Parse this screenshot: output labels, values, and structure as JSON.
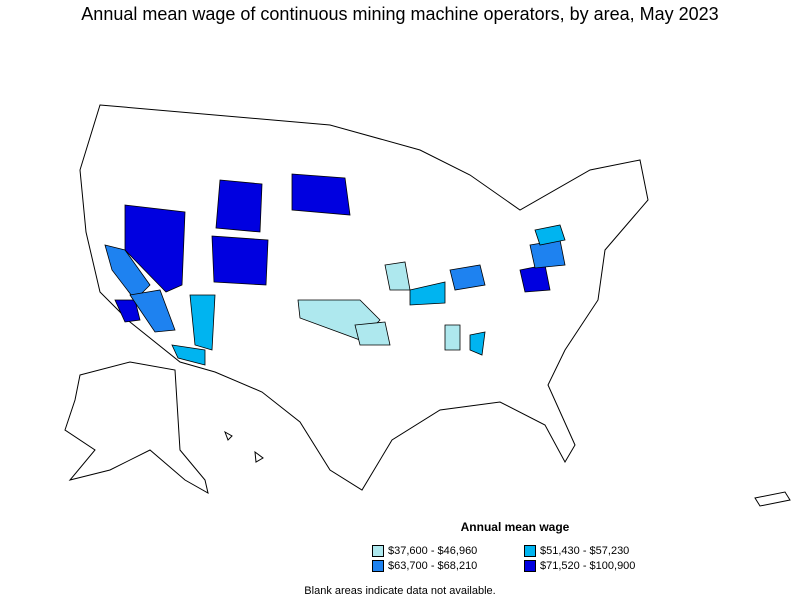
{
  "title": "Annual mean wage of continuous mining machine operators, by area, May 2023",
  "legend": {
    "title": "Annual mean wage",
    "items": [
      {
        "label": "$37,600 - $46,960",
        "color": "#aee8ee"
      },
      {
        "label": "$51,430 - $57,230",
        "color": "#00b4f0"
      },
      {
        "label": "$63,700 - $68,210",
        "color": "#1e82f0"
      },
      {
        "label": "$71,520 - $100,900",
        "color": "#0000e0"
      }
    ]
  },
  "footnote": "Blank areas indicate data not available."
}
